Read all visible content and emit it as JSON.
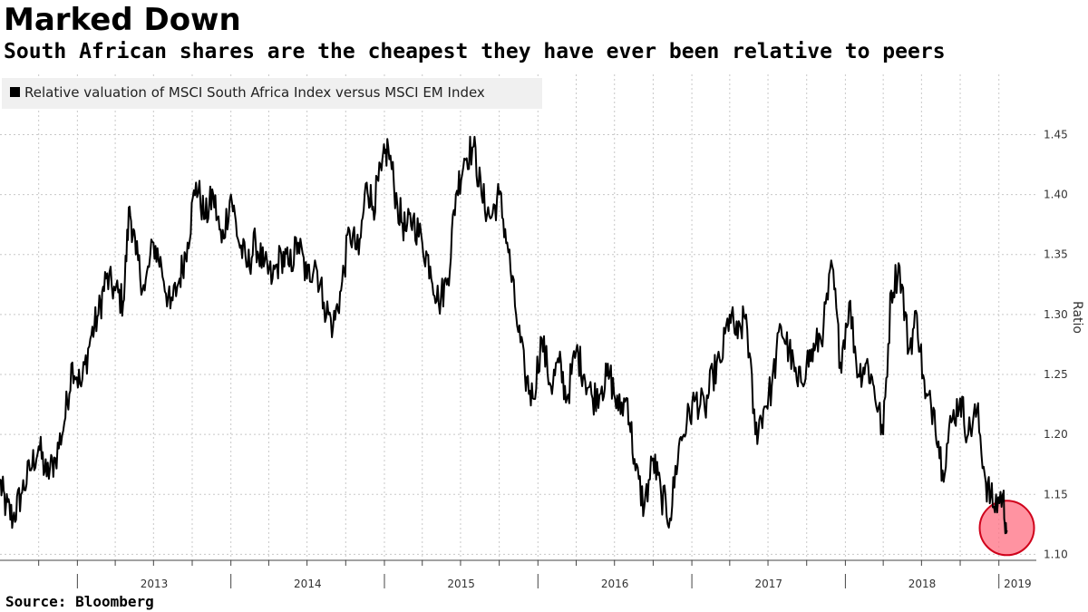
{
  "title": "Marked Down",
  "subtitle": "South African shares are the cheapest they have ever been relative to peers",
  "source": "Source:  Bloomberg",
  "chart_data": {
    "type": "line",
    "ylabel": "Ratio",
    "y_ticks": [
      "1.10",
      "1.15",
      "1.20",
      "1.25",
      "1.30",
      "1.35",
      "1.40",
      "1.45"
    ],
    "ylim": [
      1.095,
      1.47
    ],
    "x_tick_labels": [
      "2013",
      "2014",
      "2015",
      "2016",
      "2017",
      "2018",
      "2019"
    ],
    "xlim": [
      "2012-07-01",
      "2019-03-31"
    ],
    "grid": true,
    "legend_position": "top-left",
    "highlight": {
      "x": "2019-01-20",
      "y": 1.122,
      "color": "#ff6f82"
    },
    "series": [
      {
        "name": "Relative valuation of MSCI South Africa Index versus MSCI EM Index",
        "color": "#000000",
        "x": [
          "2012-07-01",
          "2012-07-15",
          "2012-08-01",
          "2012-08-20",
          "2012-09-10",
          "2012-10-01",
          "2012-10-20",
          "2012-11-10",
          "2012-12-01",
          "2012-12-20",
          "2013-01-10",
          "2013-02-01",
          "2013-02-20",
          "2013-03-10",
          "2013-04-01",
          "2013-04-20",
          "2013-05-05",
          "2013-05-20",
          "2013-06-10",
          "2013-07-01",
          "2013-07-20",
          "2013-08-10",
          "2013-09-01",
          "2013-09-20",
          "2013-10-10",
          "2013-11-01",
          "2013-11-20",
          "2013-12-10",
          "2014-01-01",
          "2014-01-20",
          "2014-02-10",
          "2014-03-01",
          "2014-03-20",
          "2014-04-10",
          "2014-05-01",
          "2014-05-20",
          "2014-06-10",
          "2014-07-01",
          "2014-07-20",
          "2014-08-10",
          "2014-09-01",
          "2014-09-20",
          "2014-10-10",
          "2014-11-01",
          "2014-11-20",
          "2014-12-05",
          "2014-12-25",
          "2015-01-10",
          "2015-02-01",
          "2015-02-20",
          "2015-03-10",
          "2015-04-01",
          "2015-04-20",
          "2015-05-10",
          "2015-06-01",
          "2015-06-20",
          "2015-07-10",
          "2015-08-01",
          "2015-08-20",
          "2015-09-10",
          "2015-10-01",
          "2015-10-20",
          "2015-11-10",
          "2015-12-01",
          "2015-12-20",
          "2016-01-10",
          "2016-02-01",
          "2016-02-20",
          "2016-03-10",
          "2016-04-01",
          "2016-04-20",
          "2016-05-10",
          "2016-06-01",
          "2016-06-20",
          "2016-07-10",
          "2016-08-01",
          "2016-08-20",
          "2016-09-10",
          "2016-10-01",
          "2016-10-20",
          "2016-11-10",
          "2016-12-01",
          "2016-12-20",
          "2017-01-10",
          "2017-02-01",
          "2017-02-20",
          "2017-03-10",
          "2017-04-01",
          "2017-04-20",
          "2017-05-10",
          "2017-06-01",
          "2017-06-20",
          "2017-07-10",
          "2017-08-01",
          "2017-08-20",
          "2017-09-10",
          "2017-10-01",
          "2017-10-20",
          "2017-11-10",
          "2017-12-01",
          "2017-12-20",
          "2018-01-10",
          "2018-02-01",
          "2018-02-20",
          "2018-03-10",
          "2018-04-01",
          "2018-04-20",
          "2018-05-10",
          "2018-06-01",
          "2018-06-20",
          "2018-07-10",
          "2018-08-01",
          "2018-08-20",
          "2018-09-10",
          "2018-10-01",
          "2018-10-20",
          "2018-11-10",
          "2018-12-01",
          "2018-12-20",
          "2019-01-10",
          "2019-01-20"
        ],
        "values": [
          1.16,
          1.14,
          1.13,
          1.15,
          1.17,
          1.19,
          1.165,
          1.18,
          1.21,
          1.26,
          1.24,
          1.28,
          1.3,
          1.33,
          1.32,
          1.31,
          1.39,
          1.35,
          1.32,
          1.36,
          1.34,
          1.305,
          1.33,
          1.36,
          1.41,
          1.38,
          1.4,
          1.36,
          1.4,
          1.36,
          1.34,
          1.36,
          1.34,
          1.33,
          1.35,
          1.34,
          1.36,
          1.33,
          1.345,
          1.31,
          1.29,
          1.32,
          1.37,
          1.35,
          1.41,
          1.39,
          1.42,
          1.44,
          1.39,
          1.37,
          1.38,
          1.36,
          1.34,
          1.31,
          1.33,
          1.4,
          1.43,
          1.44,
          1.4,
          1.38,
          1.4,
          1.36,
          1.3,
          1.25,
          1.23,
          1.28,
          1.24,
          1.26,
          1.23,
          1.27,
          1.25,
          1.23,
          1.24,
          1.25,
          1.22,
          1.23,
          1.17,
          1.14,
          1.18,
          1.15,
          1.13,
          1.19,
          1.21,
          1.23,
          1.22,
          1.25,
          1.26,
          1.3,
          1.28,
          1.3,
          1.2,
          1.22,
          1.24,
          1.29,
          1.27,
          1.24,
          1.26,
          1.27,
          1.29,
          1.34,
          1.26,
          1.31,
          1.25,
          1.26,
          1.24,
          1.2,
          1.32,
          1.34,
          1.27,
          1.3,
          1.23,
          1.22,
          1.17,
          1.21,
          1.23,
          1.2,
          1.22,
          1.16,
          1.14,
          1.15,
          1.12
        ]
      }
    ]
  }
}
